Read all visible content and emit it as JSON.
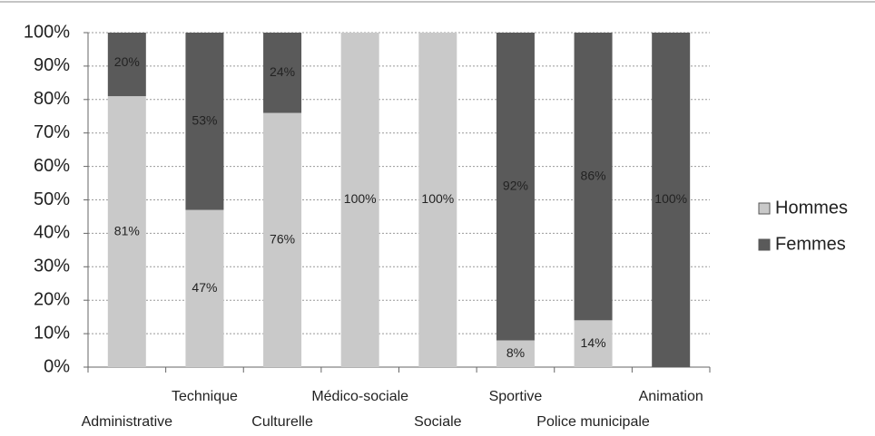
{
  "chart_data": {
    "type": "stacked_bar",
    "categories": [
      "Administrative",
      "Technique",
      "Culturelle",
      "Médico-sociale",
      "Sociale",
      "Sportive",
      "Police municipale",
      "Animation"
    ],
    "series": [
      {
        "name": "Hommes",
        "color": "#c9c9c9",
        "values": [
          81,
          47,
          76,
          100,
          100,
          8,
          14,
          0
        ],
        "value_labels": [
          "81%",
          "47%",
          "76%",
          "100%",
          "100%",
          "8%",
          "14%",
          null
        ]
      },
      {
        "name": "Femmes",
        "color": "#5a5a5a",
        "values": [
          20,
          53,
          24,
          0,
          0,
          92,
          86,
          100
        ],
        "value_labels": [
          "20%",
          "53%",
          "24%",
          null,
          null,
          "92%",
          "86%",
          "100%"
        ]
      }
    ],
    "ylim": [
      0,
      100
    ],
    "yticks": [
      {
        "value": 0,
        "label": "0%"
      },
      {
        "value": 10,
        "label": "10%"
      },
      {
        "value": 20,
        "label": "20%"
      },
      {
        "value": 30,
        "label": "30%"
      },
      {
        "value": 40,
        "label": "40%"
      },
      {
        "value": 50,
        "label": "50%"
      },
      {
        "value": 60,
        "label": "60%"
      },
      {
        "value": 70,
        "label": "70%"
      },
      {
        "value": 80,
        "label": "80%"
      },
      {
        "value": 90,
        "label": "90%"
      },
      {
        "value": 100,
        "label": "100%"
      }
    ],
    "grid": true,
    "legend": "right"
  }
}
